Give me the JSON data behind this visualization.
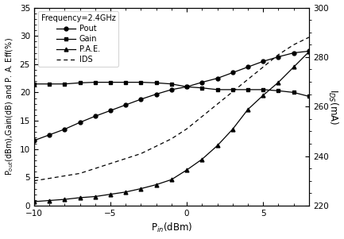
{
  "pin": [
    -10,
    -9,
    -8,
    -7,
    -6,
    -5,
    -4,
    -3,
    -2,
    -1,
    0,
    1,
    2,
    3,
    4,
    5,
    6,
    7,
    8
  ],
  "pout": [
    11.5,
    12.5,
    13.5,
    14.7,
    15.8,
    16.8,
    17.8,
    18.8,
    19.7,
    20.5,
    21.0,
    21.8,
    22.5,
    23.5,
    24.5,
    25.5,
    26.3,
    27.0,
    27.3
  ],
  "gain": [
    21.5,
    21.5,
    21.5,
    21.7,
    21.8,
    21.8,
    21.8,
    21.8,
    21.7,
    21.5,
    21.0,
    20.8,
    20.5,
    20.5,
    20.5,
    20.5,
    20.3,
    20.0,
    19.3
  ],
  "pae": [
    0.7,
    0.9,
    1.1,
    1.4,
    1.6,
    2.0,
    2.4,
    3.0,
    3.7,
    4.6,
    6.3,
    8.2,
    10.6,
    13.5,
    17.0,
    19.5,
    21.8,
    24.5,
    27.2
  ],
  "ids_pin": [
    -10,
    -9,
    -8,
    -7,
    -6,
    -5,
    -4,
    -3,
    -2,
    -1,
    0,
    1,
    2,
    3,
    4,
    5,
    6,
    7,
    8
  ],
  "ids": [
    230,
    231,
    232,
    233,
    235,
    237,
    239,
    241,
    244,
    247,
    251,
    256,
    261,
    266,
    271,
    276,
    281,
    285,
    288
  ],
  "xlim": [
    -10,
    8
  ],
  "ylim_left": [
    0,
    35
  ],
  "ylim_right": [
    220,
    300
  ],
  "xticks": [
    -10,
    -5,
    0,
    5
  ],
  "yticks_left": [
    0,
    5,
    10,
    15,
    20,
    25,
    30,
    35
  ],
  "yticks_right": [
    220,
    240,
    260,
    280,
    300
  ],
  "xlabel": "P$_{in}$(dBm)",
  "ylabel_left": "P$_{out}$(dBm),Gain(dB) and P. A. Eff(%)",
  "ylabel_right": "I$_{DS}$(mA)",
  "legend_title": "Frequency=2.4GHz",
  "legend_labels": [
    "Pout",
    "Gain",
    "P.A.E.",
    "IDS"
  ],
  "line_color": "black",
  "bg_color": "white"
}
